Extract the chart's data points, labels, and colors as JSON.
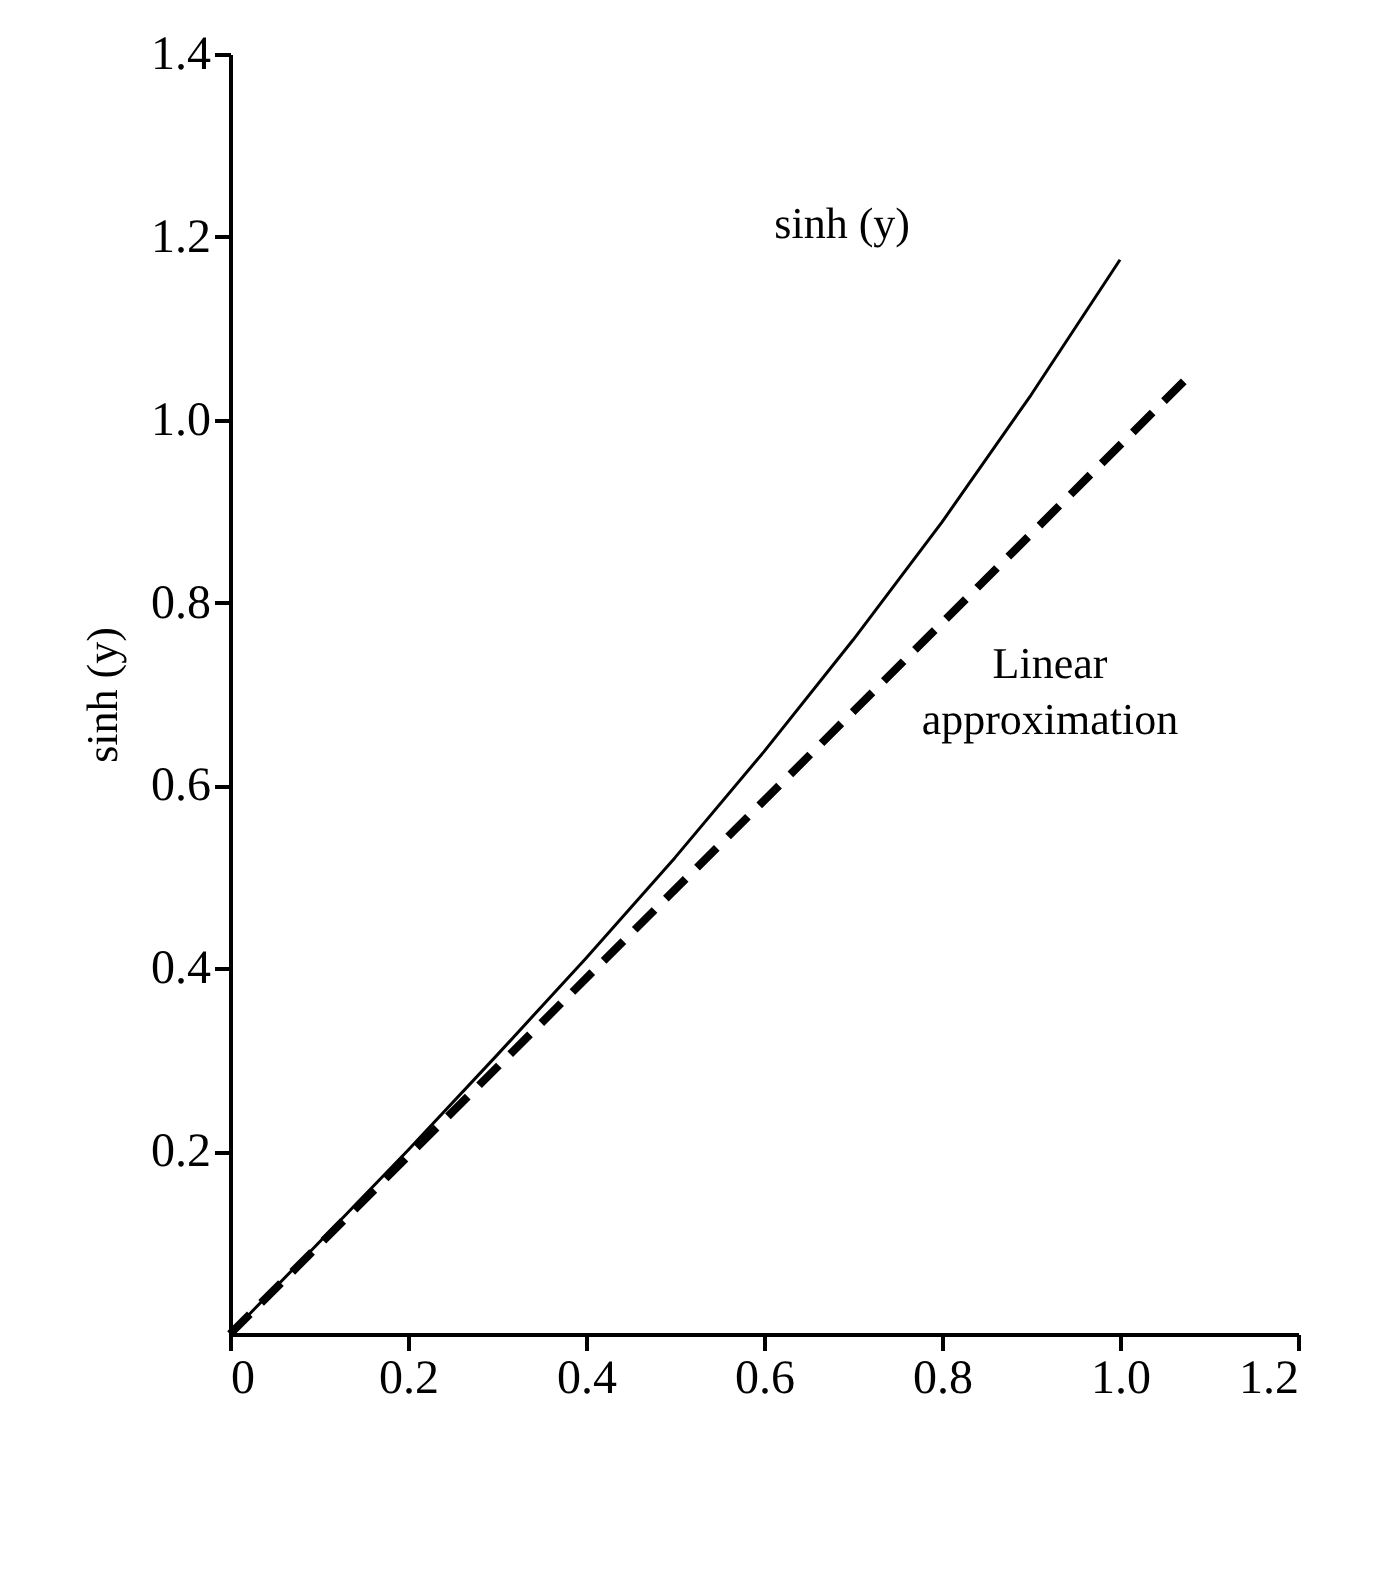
{
  "chart_data": {
    "type": "line",
    "ylabel": "sinh (y)",
    "xlim": [
      0,
      1.2
    ],
    "xticks": [
      0,
      0.2,
      0.4,
      0.6,
      0.8,
      {
        "value": 1,
        "label": "1.0"
      },
      1.2
    ],
    "ylim": [
      0,
      1.4
    ],
    "yticks": [
      0.2,
      0.4,
      0.6,
      0.8,
      {
        "value": 1,
        "label": "1.0"
      },
      1.2,
      1.4
    ],
    "grid": false,
    "marker": "none",
    "series": [
      {
        "color": "#000000",
        "line_style": "solid",
        "x": [
          0,
          0.1,
          0.2,
          0.3,
          0.4,
          0.5,
          0.6,
          0.7,
          0.8,
          0.9,
          1.0
        ],
        "values": [
          0,
          0.1,
          0.201,
          0.305,
          0.411,
          0.521,
          0.637,
          0.759,
          0.888,
          1.027,
          1.175
        ]
      },
      {
        "color": "#000000",
        "line_style": "dashed",
        "x": [
          0,
          1.08
        ],
        "values": [
          0,
          1.05
        ]
      }
    ],
    "annotations": [
      "sinh (y)",
      "Linear\napproximation"
    ]
  }
}
